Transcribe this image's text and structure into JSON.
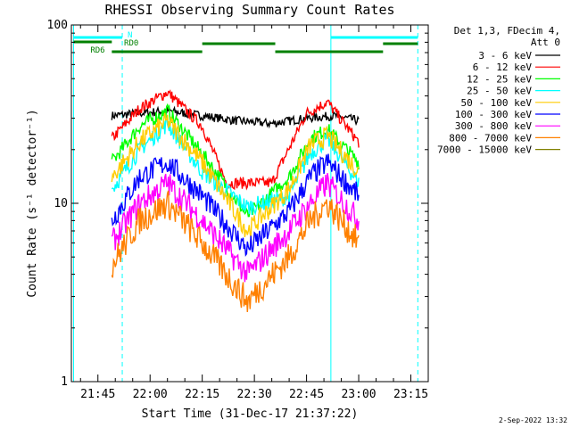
{
  "chart_data": {
    "type": "line",
    "title": "RHESSI Observing Summary Count Rates",
    "xlabel": "Start Time (31-Dec-17 21:37:22)",
    "ylabel": "Count Rate (s⁻¹ detector⁻¹)",
    "y_scale": "log",
    "ylim": [
      1,
      100
    ],
    "xlim": [
      "21:37:22",
      "23:20:00"
    ],
    "x_ticks": [
      "21:45",
      "22:00",
      "22:15",
      "22:30",
      "22:45",
      "23:00",
      "23:15"
    ],
    "y_ticks": [
      "1",
      "10",
      "100"
    ],
    "legend_title": "Det 1,3, FDecim 4,",
    "legend_subtitle": "Att 0",
    "legend_position": "right",
    "timestamp": "2-Sep-2022 13:32",
    "flags": {
      "rd0_label": "RD0",
      "rd6_label": "RD6",
      "n_label": "N",
      "cyan_color": "#00ffff",
      "green_color": "#008000"
    },
    "series": [
      {
        "name": "3 - 6 keV",
        "color": "#000000",
        "times": [
          "21:49:00",
          "21:57:00",
          "22:05:00",
          "22:15:00",
          "22:25:00",
          "22:35:00",
          "22:45:00",
          "22:53:00",
          "23:00:00"
        ],
        "values": [
          31,
          32,
          33,
          31,
          29,
          28,
          30,
          31,
          29
        ]
      },
      {
        "name": "6 - 12 keV",
        "color": "#ff0000",
        "times": [
          "21:49:00",
          "21:57:00",
          "22:05:00",
          "22:15:00",
          "22:22:00",
          "22:35:00",
          "22:45:00",
          "22:51:00",
          "23:00:00"
        ],
        "values": [
          23,
          34,
          42,
          27,
          13,
          13,
          32,
          37,
          22
        ]
      },
      {
        "name": "12 - 25 keV",
        "color": "#00ff00",
        "times": [
          "21:49:00",
          "21:57:00",
          "22:05:00",
          "22:15:00",
          "22:28:00",
          "22:40:00",
          "22:46:00",
          "22:51:00",
          "23:00:00"
        ],
        "values": [
          17,
          27,
          33,
          19,
          8.5,
          14,
          23,
          26,
          17
        ]
      },
      {
        "name": "25 - 50 keV",
        "color": "#00ffff",
        "times": [
          "21:49:00",
          "21:57:00",
          "22:05:00",
          "22:15:00",
          "22:28:00",
          "22:40:00",
          "22:46:00",
          "22:51:00",
          "23:00:00"
        ],
        "values": [
          12,
          20,
          28,
          15,
          9.5,
          11,
          19,
          23,
          13
        ]
      },
      {
        "name": "50 - 100 keV",
        "color": "#ffcc00",
        "times": [
          "21:49:00",
          "21:57:00",
          "22:05:00",
          "22:15:00",
          "22:28:00",
          "22:40:00",
          "22:46:00",
          "22:51:00",
          "23:00:00"
        ],
        "values": [
          14,
          22,
          29,
          17,
          7,
          12,
          21,
          24,
          15
        ]
      },
      {
        "name": "100 - 300 keV",
        "color": "#0000ff",
        "times": [
          "21:49:00",
          "21:57:00",
          "22:05:00",
          "22:15:00",
          "22:28:00",
          "22:40:00",
          "22:46:00",
          "22:51:00",
          "23:00:00"
        ],
        "values": [
          8,
          14,
          17,
          11,
          5.5,
          9,
          14,
          17,
          11
        ]
      },
      {
        "name": "300 - 800 keV",
        "color": "#ff00ff",
        "times": [
          "21:49:00",
          "21:57:00",
          "22:05:00",
          "22:15:00",
          "22:28:00",
          "22:40:00",
          "22:46:00",
          "22:51:00",
          "23:00:00"
        ],
        "values": [
          6,
          10,
          13,
          8,
          4,
          7,
          10,
          13,
          8
        ]
      },
      {
        "name": "800 - 7000 keV",
        "color": "#ff8000",
        "times": [
          "21:49:00",
          "21:57:00",
          "22:05:00",
          "22:15:00",
          "22:28:00",
          "22:40:00",
          "22:46:00",
          "22:51:00",
          "23:00:00"
        ],
        "values": [
          4.5,
          8,
          10,
          6,
          2.8,
          5,
          8,
          10,
          6
        ]
      },
      {
        "name": "7000 - 15000 keV",
        "color": "#808000",
        "times": [],
        "values": []
      }
    ]
  }
}
